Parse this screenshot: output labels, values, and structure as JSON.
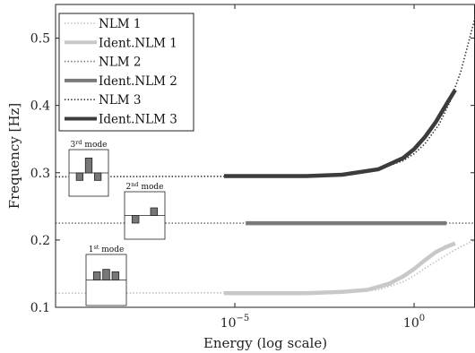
{
  "chart_data": {
    "type": "line",
    "xlabel": "Energy (log scale)",
    "ylabel": "Frequency [Hz]",
    "x_scale": "log",
    "xlim": [
      1e-10,
      50
    ],
    "ylim": [
      0.1,
      0.55
    ],
    "x_ticks": [
      {
        "value": 1e-05,
        "base": "10",
        "exp": "−5"
      },
      {
        "value": 1,
        "base": "10",
        "exp": "0"
      }
    ],
    "y_ticks": [
      0.1,
      0.2,
      0.3,
      0.4,
      0.5
    ],
    "y_tick_labels": [
      "0.1",
      "0.2",
      "0.3",
      "0.4",
      "0.5"
    ],
    "grid": false,
    "legend_position": "top-left",
    "series": [
      {
        "name": "NLM 1",
        "style": "dotted",
        "color": "#bdbdbd",
        "x": [
          1e-10,
          0.01,
          0.1,
          0.5,
          1,
          2,
          5,
          10,
          20,
          50
        ],
        "y": [
          0.121,
          0.122,
          0.126,
          0.138,
          0.147,
          0.158,
          0.171,
          0.181,
          0.19,
          0.2
        ]
      },
      {
        "name": "Ident.NLM 1",
        "style": "thick",
        "color": "#c8c8c8",
        "x": [
          5e-06,
          0.001,
          0.01,
          0.05,
          0.2,
          0.5,
          1,
          2,
          4,
          8,
          14
        ],
        "y": [
          0.121,
          0.121,
          0.123,
          0.126,
          0.135,
          0.146,
          0.157,
          0.17,
          0.182,
          0.19,
          0.195
        ]
      },
      {
        "name": "NLM 2",
        "style": "dotted",
        "color": "#707070",
        "x": [
          1e-10,
          50
        ],
        "y": [
          0.225,
          0.225
        ]
      },
      {
        "name": "Ident.NLM 2",
        "style": "thick",
        "color": "#7a7a7a",
        "x": [
          2e-05,
          8
        ],
        "y": [
          0.225,
          0.225
        ]
      },
      {
        "name": "NLM 3",
        "style": "dotted",
        "color": "#303030",
        "x": [
          1e-10,
          0.001,
          0.01,
          0.1,
          0.5,
          1,
          2,
          5,
          10,
          20,
          50
        ],
        "y": [
          0.294,
          0.295,
          0.298,
          0.305,
          0.318,
          0.328,
          0.343,
          0.372,
          0.405,
          0.45,
          0.53
        ]
      },
      {
        "name": "Ident.NLM 3",
        "style": "thick",
        "color": "#3c3c3c",
        "x": [
          5e-06,
          0.001,
          0.01,
          0.1,
          0.5,
          1,
          2,
          4,
          8,
          14
        ],
        "y": [
          0.295,
          0.295,
          0.297,
          0.305,
          0.322,
          0.335,
          0.353,
          0.375,
          0.402,
          0.423
        ]
      }
    ],
    "insets": [
      {
        "title_base": "3",
        "title_sup": "rd",
        "title_rest": " mode",
        "bars": [
          -1,
          2,
          -1
        ]
      },
      {
        "title_base": "2",
        "title_sup": "nd",
        "title_rest": " mode",
        "bars": [
          -1,
          0,
          1
        ]
      },
      {
        "title_base": "1",
        "title_sup": "st",
        "title_rest": " mode",
        "bars": [
          1,
          1.3,
          1
        ]
      }
    ]
  }
}
